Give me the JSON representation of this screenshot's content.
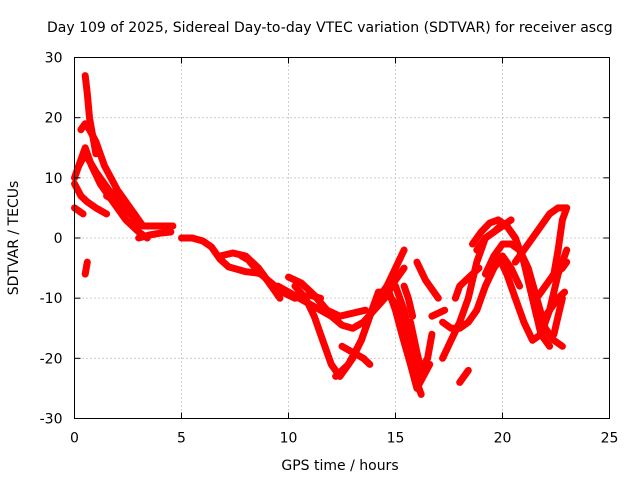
{
  "chart_data": {
    "type": "scatter",
    "title": "Day 109 of 2025, Sidereal Day-to-day VTEC variation (SDTVAR) for receiver ascg",
    "xlabel": "GPS time / hours",
    "ylabel": "SDTVAR / TECUs",
    "xlim": [
      0,
      25
    ],
    "ylim": [
      -30,
      30
    ],
    "xticks": [
      0,
      5,
      10,
      15,
      20,
      25
    ],
    "yticks": [
      -30,
      -20,
      -10,
      0,
      10,
      20,
      30
    ],
    "grid": true,
    "marker": "+",
    "color": "#ff0000",
    "series": [
      {
        "name": "arc-1",
        "x": [
          0.0,
          0.3,
          0.5,
          0.8,
          1.2,
          1.8,
          2.4,
          3.0,
          3.4
        ],
        "y": [
          10,
          13,
          15,
          12,
          9,
          6,
          3,
          1,
          0
        ]
      },
      {
        "name": "arc-2",
        "x": [
          0.5,
          0.6,
          0.7,
          0.8,
          0.9,
          1.0
        ],
        "y": [
          27,
          24,
          20,
          18,
          16,
          14
        ]
      },
      {
        "name": "arc-3",
        "x": [
          0.3,
          0.5,
          0.7,
          1.0,
          1.4,
          2.0,
          2.6,
          3.2,
          4.2,
          4.6
        ],
        "y": [
          18,
          19,
          18,
          16,
          12,
          8,
          5,
          2,
          2,
          2
        ]
      },
      {
        "name": "arc-4",
        "x": [
          0.0,
          0.3,
          0.6,
          1.0,
          1.5
        ],
        "y": [
          9,
          7,
          6,
          5,
          4
        ]
      },
      {
        "name": "arc-5",
        "x": [
          0.0,
          0.2,
          0.4
        ],
        "y": [
          5,
          4.5,
          4
        ]
      },
      {
        "name": "arc-6",
        "x": [
          0.5,
          0.6
        ],
        "y": [
          -6,
          -4
        ]
      },
      {
        "name": "arc-7",
        "x": [
          0.2,
          0.5,
          1.0,
          1.6,
          2.2,
          2.8,
          3.1
        ],
        "y": [
          12,
          14,
          11,
          8,
          6,
          4,
          2
        ]
      },
      {
        "name": "arc-8",
        "x": [
          1.5,
          2.0,
          2.6,
          3.1
        ],
        "y": [
          7,
          6,
          4,
          2
        ]
      },
      {
        "name": "arc-9",
        "x": [
          3.0,
          3.5,
          4.0,
          4.5
        ],
        "y": [
          0,
          0.5,
          0.8,
          1
        ]
      },
      {
        "name": "arc-10",
        "x": [
          5.0,
          5.5,
          6.0,
          6.4,
          6.8,
          7.2,
          7.6,
          8.0,
          8.5,
          8.8
        ],
        "y": [
          0,
          0,
          -0.5,
          -1.5,
          -3.5,
          -4.8,
          -5.2,
          -5.6,
          -5.8,
          -6
        ]
      },
      {
        "name": "arc-11",
        "x": [
          6.8,
          7.4,
          8.0,
          8.6,
          9.2,
          9.6
        ],
        "y": [
          -3,
          -2.5,
          -3,
          -5,
          -8,
          -10
        ]
      },
      {
        "name": "arc-12",
        "x": [
          7.8,
          8.3,
          8.8,
          9.2
        ],
        "y": [
          -3,
          -4,
          -6,
          -8
        ]
      },
      {
        "name": "arc-13",
        "x": [
          8.2,
          8.7,
          9.2,
          9.7,
          10.3,
          11.0,
          11.5
        ],
        "y": [
          -4,
          -6,
          -7.5,
          -9,
          -10,
          -9.5,
          -10
        ]
      },
      {
        "name": "arc-14",
        "x": [
          10.0,
          10.6,
          11.2,
          11.8,
          12.4,
          13.0,
          13.6
        ],
        "y": [
          -6.5,
          -7.5,
          -9.5,
          -12,
          -13,
          -12.5,
          -12
        ]
      },
      {
        "name": "arc-15",
        "x": [
          10.3,
          10.8,
          11.2,
          11.6,
          12.0,
          12.4,
          12.8
        ],
        "y": [
          -8,
          -10,
          -13,
          -17,
          -21,
          -23,
          -21
        ]
      },
      {
        "name": "arc-16",
        "x": [
          9.5,
          10.0,
          10.5,
          11.0,
          11.5,
          12.0,
          12.5,
          13.0,
          13.5,
          14.0,
          14.5,
          15.0,
          15.4
        ],
        "y": [
          -8,
          -9,
          -10,
          -11,
          -12,
          -13,
          -14.5,
          -15,
          -14,
          -12,
          -10,
          -7,
          -5
        ]
      },
      {
        "name": "arc-17",
        "x": [
          12.2,
          12.8,
          13.4,
          13.8,
          14.2,
          14.6,
          15.0,
          15.4
        ],
        "y": [
          -23,
          -21,
          -17,
          -13,
          -10,
          -8,
          -5,
          -2
        ]
      },
      {
        "name": "arc-18",
        "x": [
          12.5,
          13.0,
          13.5,
          13.8
        ],
        "y": [
          -18,
          -19,
          -20,
          -21
        ]
      },
      {
        "name": "arc-19",
        "x": [
          12.6,
          13.0,
          13.4,
          13.8,
          14.2,
          14.6,
          15.0,
          15.4,
          15.8,
          16.2
        ],
        "y": [
          -22,
          -20,
          -17,
          -13,
          -9,
          -9,
          -11,
          -14,
          -19,
          -23
        ]
      },
      {
        "name": "arc-20",
        "x": [
          14.6,
          15.0,
          15.3,
          15.7,
          16.0,
          16.3,
          16.6
        ],
        "y": [
          -8,
          -12,
          -16,
          -21,
          -25,
          -23,
          -21
        ]
      },
      {
        "name": "arc-21",
        "x": [
          15.0,
          15.2,
          15.4,
          15.6,
          15.8,
          16.0,
          16.2
        ],
        "y": [
          -8,
          -10,
          -12,
          -15,
          -19,
          -24,
          -26
        ]
      },
      {
        "name": "arc-22",
        "x": [
          15.4,
          15.6,
          15.8
        ],
        "y": [
          -8,
          -10,
          -13
        ]
      },
      {
        "name": "arc-23",
        "x": [
          15.7,
          16.0,
          16.2,
          16.5,
          16.7
        ],
        "y": [
          -14,
          -19,
          -22,
          -20,
          -16
        ]
      },
      {
        "name": "arc-24",
        "x": [
          16.0,
          16.4,
          16.8,
          17.0
        ],
        "y": [
          -4,
          -7,
          -9,
          -10
        ]
      },
      {
        "name": "arc-25",
        "x": [
          16.7,
          17.0,
          17.3
        ],
        "y": [
          -13,
          -12.5,
          -12
        ]
      },
      {
        "name": "arc-26",
        "x": [
          17.2,
          17.6,
          18.0,
          18.4,
          18.8,
          19.2,
          19.6,
          20.0,
          20.4,
          20.8
        ],
        "y": [
          -14,
          -15,
          -15,
          -14,
          -12,
          -8,
          -5,
          -3,
          -5,
          -8
        ]
      },
      {
        "name": "arc-27",
        "x": [
          17.2,
          17.6,
          18.0,
          18.4,
          18.8,
          19.2,
          19.6,
          20.0,
          20.4
        ],
        "y": [
          -20,
          -17,
          -14,
          -10,
          -4,
          0,
          1,
          2,
          3
        ]
      },
      {
        "name": "arc-28",
        "x": [
          17.8,
          18.0,
          18.3,
          18.6,
          18.9
        ],
        "y": [
          -10,
          -8,
          -7,
          -6,
          -5
        ]
      },
      {
        "name": "arc-29",
        "x": [
          18.0,
          18.2,
          18.4
        ],
        "y": [
          -24,
          -23,
          -22
        ]
      },
      {
        "name": "arc-30",
        "x": [
          18.8,
          19.2,
          19.6,
          19.9,
          20.2,
          20.6,
          21.0,
          21.4
        ],
        "y": [
          -2,
          0,
          1,
          2,
          2,
          0,
          -4,
          -10
        ]
      },
      {
        "name": "arc-31",
        "x": [
          18.6,
          19.0,
          19.4,
          19.8,
          20.2,
          20.6,
          21.0,
          21.4,
          21.8,
          22.2
        ],
        "y": [
          -1,
          1,
          2.5,
          3,
          2,
          0,
          -4,
          -10,
          -16,
          -18
        ]
      },
      {
        "name": "arc-32",
        "x": [
          19.2,
          19.6,
          20.0,
          20.4,
          20.8,
          21.2,
          21.6,
          22.0,
          22.4,
          22.8
        ],
        "y": [
          -6,
          -3,
          -1,
          -1,
          -2,
          -5,
          -10,
          -15,
          -17,
          -18
        ]
      },
      {
        "name": "arc-33",
        "x": [
          19.8,
          20.2,
          20.6,
          21.0,
          21.4,
          21.8,
          22.2,
          22.6,
          23.0
        ],
        "y": [
          -3,
          -6,
          -10,
          -14,
          -17,
          -16,
          -12,
          -6,
          -2
        ]
      },
      {
        "name": "arc-34",
        "x": [
          20.6,
          21.0,
          21.4,
          21.8,
          22.2,
          22.6,
          23.0
        ],
        "y": [
          -4,
          -2,
          0,
          2,
          4,
          5,
          5
        ]
      },
      {
        "name": "arc-35",
        "x": [
          21.8,
          22.2,
          22.6,
          22.9
        ],
        "y": [
          -14,
          -12,
          -10,
          -9
        ]
      },
      {
        "name": "arc-36",
        "x": [
          21.6,
          22.0,
          22.4,
          22.8,
          23.0
        ],
        "y": [
          -10,
          -8,
          -6,
          -5,
          -4
        ]
      },
      {
        "name": "arc-37",
        "x": [
          22.4,
          22.6,
          22.8,
          23.0
        ],
        "y": [
          -6,
          -2,
          3,
          5
        ]
      },
      {
        "name": "arc-38",
        "x": [
          22.4,
          22.6,
          22.8
        ],
        "y": [
          -16,
          -13,
          -10
        ]
      },
      {
        "name": "arc-39",
        "x": [
          21.2,
          21.4,
          21.6
        ],
        "y": [
          -7,
          -10,
          -13
        ]
      }
    ]
  }
}
